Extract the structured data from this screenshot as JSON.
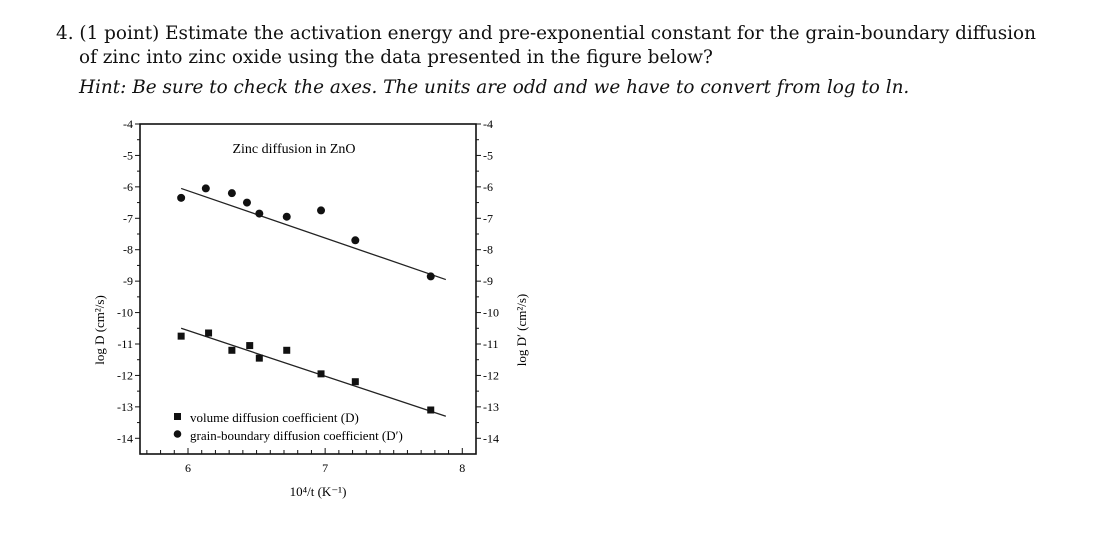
{
  "question": {
    "number": "4.",
    "points": "(1 point)",
    "line1_rest": "Estimate the activation energy and pre-exponential constant for the grain-boundary diffusion",
    "line2": "of zinc into zinc oxide using the data presented in the figure below?",
    "hint": "Hint: Be sure to check the axes. The units are odd and we have to convert from log to ln."
  },
  "chart_data": {
    "type": "scatter",
    "title": "Zinc diffusion in ZnO",
    "xlabel": "10⁴/t (K⁻¹)",
    "ylabel_left": "log D (cm²/s)",
    "ylabel_right": "log D′ (cm²/s)",
    "xlim": [
      5.65,
      8.1
    ],
    "ylim": [
      -14.5,
      -4
    ],
    "x_ticks": [
      "6",
      "7",
      "8"
    ],
    "y_ticks": [
      "-4",
      "-5",
      "-6",
      "-7",
      "-8",
      "-9",
      "-10",
      "-11",
      "-12",
      "-13",
      "-14"
    ],
    "legend_position": "bottom-left",
    "series": [
      {
        "name": "volume diffusion coefficient (D)",
        "marker": "square",
        "x": [
          5.95,
          6.15,
          6.32,
          6.45,
          6.52,
          6.72,
          6.97,
          7.22,
          7.77
        ],
        "y": [
          -10.75,
          -10.65,
          -11.2,
          -11.05,
          -11.45,
          -11.2,
          -11.95,
          -12.2,
          -13.1
        ],
        "fit": {
          "x": [
            5.95,
            7.88
          ],
          "y": [
            -10.5,
            -13.3
          ]
        }
      },
      {
        "name": "grain-boundary diffusion coefficient (D′)",
        "marker": "circle",
        "x": [
          5.95,
          6.13,
          6.32,
          6.43,
          6.52,
          6.72,
          6.97,
          7.22,
          7.77
        ],
        "y": [
          -6.35,
          -6.05,
          -6.2,
          -6.5,
          -6.85,
          -6.95,
          -6.75,
          -7.7,
          -8.85
        ],
        "fit": {
          "x": [
            5.95,
            7.88
          ],
          "y": [
            -6.05,
            -8.95
          ]
        }
      }
    ]
  }
}
